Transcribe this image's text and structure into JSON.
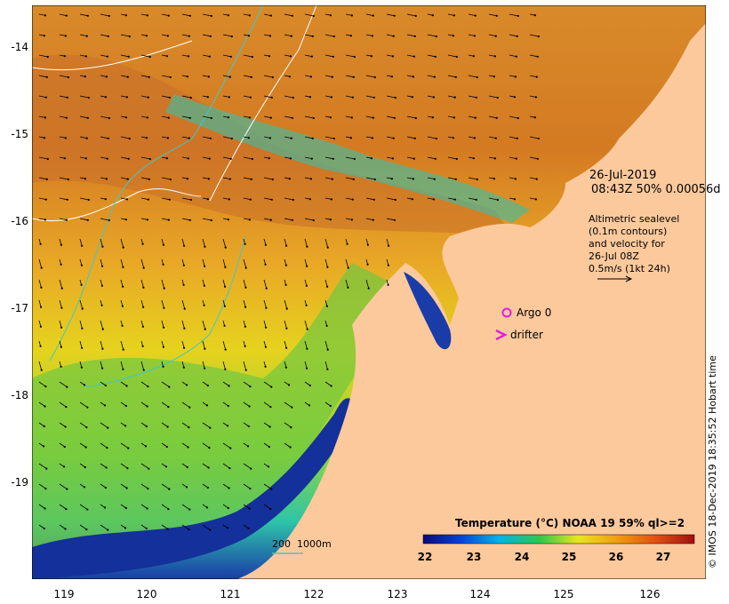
{
  "map": {
    "land_color": "#fcc99c",
    "lat_ticks": [
      "-14",
      "-15",
      "-16",
      "-17",
      "-18",
      "-19"
    ],
    "lon_ticks": [
      "119",
      "120",
      "121",
      "122",
      "123",
      "124",
      "125",
      "126"
    ]
  },
  "annotation": {
    "date": "26-Jul-2019",
    "time_line": "08:43Z  50% 0.00056d",
    "altimetry_lines": [
      "Altimetric sealevel",
      "(0.1m contours)",
      "and velocity for",
      "26-Jul 08Z",
      "0.5m/s (1kt 24h)"
    ]
  },
  "legend": {
    "argo_label": "Argo 0",
    "drifter_label": "drifter",
    "argo_color": "#e020e0",
    "drifter_color": "#e020e0",
    "isobath_labels": [
      "200",
      "1000m"
    ],
    "isobath_color": "#40c8c8"
  },
  "colorbar": {
    "title": "Temperature (°C) NOAA 19 59% ql>=2",
    "ticks": [
      "22",
      "23",
      "24",
      "25",
      "26",
      "27"
    ],
    "stops": [
      "#0a0a78",
      "#0044dd",
      "#00b4e6",
      "#2ec84a",
      "#e8e620",
      "#f0a010",
      "#e05010",
      "#a01010"
    ]
  },
  "credit": "© IMOS 18-Dec-2019 18:35:52 Hobart time"
}
